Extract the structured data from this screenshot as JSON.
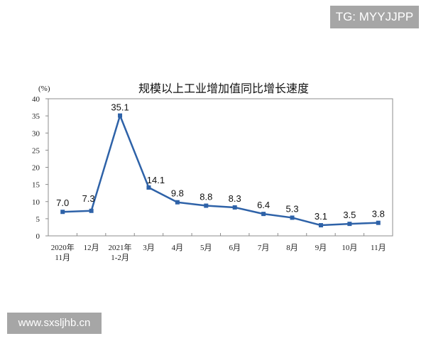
{
  "watermarks": {
    "top": "TG: MYYJJPP",
    "bottom": "www.sxsljhb.cn"
  },
  "chart_data": {
    "type": "line",
    "title": "规模以上工业增加值同比增长速度",
    "ylabel": "(%)",
    "xlabel": "",
    "ylim": [
      0,
      40
    ],
    "yticks": [
      0,
      5,
      10,
      15,
      20,
      25,
      30,
      35,
      40
    ],
    "grid": false,
    "categories": [
      "2020年 11月",
      "12月",
      "2021年 1-2月",
      "3月",
      "4月",
      "5月",
      "6月",
      "7月",
      "8月",
      "9月",
      "10月",
      "11月"
    ],
    "category_lines": [
      [
        "2020年",
        "11月"
      ],
      [
        "12月"
      ],
      [
        "2021年",
        "1-2月"
      ],
      [
        "3月"
      ],
      [
        "4月"
      ],
      [
        "5月"
      ],
      [
        "6月"
      ],
      [
        "7月"
      ],
      [
        "8月"
      ],
      [
        "9月"
      ],
      [
        "10月"
      ],
      [
        "11月"
      ]
    ],
    "series": [
      {
        "name": "规模以上工业增加值同比增长速度",
        "values": [
          7.0,
          7.3,
          35.1,
          14.1,
          9.8,
          8.8,
          8.3,
          6.4,
          5.3,
          3.1,
          3.5,
          3.8
        ],
        "color": "#2e62a8"
      }
    ],
    "data_labels": [
      "7.0",
      "7.3",
      "35.1",
      "14.1",
      "9.8",
      "8.8",
      "8.3",
      "6.4",
      "5.3",
      "3.1",
      "3.5",
      "3.8"
    ]
  }
}
